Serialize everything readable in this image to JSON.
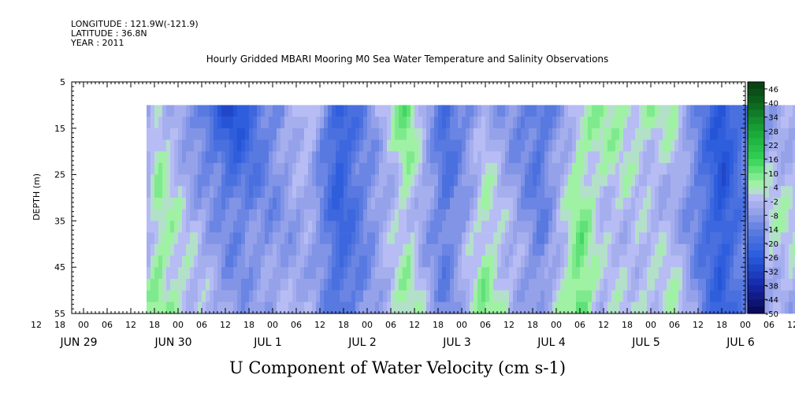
{
  "header": {
    "longitude": "LONGITUDE : 121.9W(-121.9)",
    "latitude": "LATITUDE : 36.8N",
    "year": "YEAR : 2011"
  },
  "chart_data": {
    "type": "heatmap",
    "title": "Hourly Gridded MBARI Mooring M0 Sea Water Temperature and Salinity Observations",
    "xlabel": "U Component of Water Velocity (cm s-1)",
    "ylabel": "DEPTH (m)",
    "y_range": [
      5,
      55
    ],
    "y_ticks": [
      5,
      15,
      25,
      35,
      45,
      55
    ],
    "y_reversed": true,
    "data_depth_range": [
      10,
      55
    ],
    "x_range_hours": [
      0,
      204
    ],
    "x_hour_ticks": [
      "12",
      "18",
      "00",
      "06",
      "12",
      "18",
      "00",
      "06",
      "12",
      "18",
      "00",
      "06",
      "12",
      "18",
      "00",
      "06",
      "12",
      "18",
      "00",
      "06",
      "12",
      "18",
      "00",
      "06",
      "12",
      "18",
      "00",
      "06",
      "12",
      "18",
      "00",
      "06",
      "12",
      "18",
      "00",
      "06"
    ],
    "x_date_labels": [
      {
        "label": "JUN 29",
        "hour": 0
      },
      {
        "label": "JUN 30",
        "hour": 24
      },
      {
        "label": "JUL  1",
        "hour": 48
      },
      {
        "label": "JUL  2",
        "hour": 72
      },
      {
        "label": "JUL  3",
        "hour": 96
      },
      {
        "label": "JUL  4",
        "hour": 120
      },
      {
        "label": "JUL  5",
        "hour": 144
      },
      {
        "label": "JUL  6",
        "hour": 168
      }
    ],
    "colorbar_labels": [
      "46",
      "40",
      "34",
      "28",
      "22",
      "16",
      "10",
      "4",
      "-2",
      "-8",
      "-14",
      "-20",
      "-26",
      "-32",
      "-38",
      "-44",
      "-50"
    ],
    "colorbar_range": [
      -50,
      49
    ],
    "colorbar_step": 3,
    "colors": {
      "strong_negative": "#0b0b70",
      "negative": "#2a5fd8",
      "near_zero_negative": "#a9b3ee",
      "near_zero_positive": "#a8f0a8",
      "positive": "#2ed25a",
      "strong_positive": "#0b4a18"
    },
    "u_profiles": [
      {
        "time": "JUN 29 16:00",
        "near_surface": -8,
        "mid_depth": -4,
        "bottom": 2
      },
      {
        "time": "JUN 29 19:00",
        "near_surface": 3,
        "mid_depth": 6,
        "bottom": 8
      },
      {
        "time": "JUN 30 14:00",
        "near_surface": -30,
        "mid_depth": -14,
        "bottom": -8
      },
      {
        "time": "JUL 1 09:00",
        "near_surface": 4,
        "mid_depth": -6,
        "bottom": -2
      },
      {
        "time": "JUL 1 17:00",
        "near_surface": -26,
        "mid_depth": -22,
        "bottom": -18
      },
      {
        "time": "JUL 2 10:00",
        "near_surface": 12,
        "mid_depth": 2,
        "bottom": 6
      },
      {
        "time": "JUL 2 20:00",
        "near_surface": -20,
        "mid_depth": -16,
        "bottom": -12
      },
      {
        "time": "JUL 3 06:00",
        "near_surface": -4,
        "mid_depth": 4,
        "bottom": 8
      },
      {
        "time": "JUL 3 20:00",
        "near_surface": -18,
        "mid_depth": -14,
        "bottom": -10
      },
      {
        "time": "JUL 4 06:00",
        "near_surface": 2,
        "mid_depth": 8,
        "bottom": 14
      },
      {
        "time": "JUL 4 11:00",
        "near_surface": 6,
        "mid_depth": 0,
        "bottom": -2
      },
      {
        "time": "JUL 5 06:00",
        "near_surface": 3,
        "mid_depth": -4,
        "bottom": 4
      },
      {
        "time": "JUL 5 18:00",
        "near_surface": -28,
        "mid_depth": -26,
        "bottom": -24
      },
      {
        "time": "JUL 6 06:00",
        "near_surface": -6,
        "mid_depth": 2,
        "bottom": -4
      }
    ]
  }
}
